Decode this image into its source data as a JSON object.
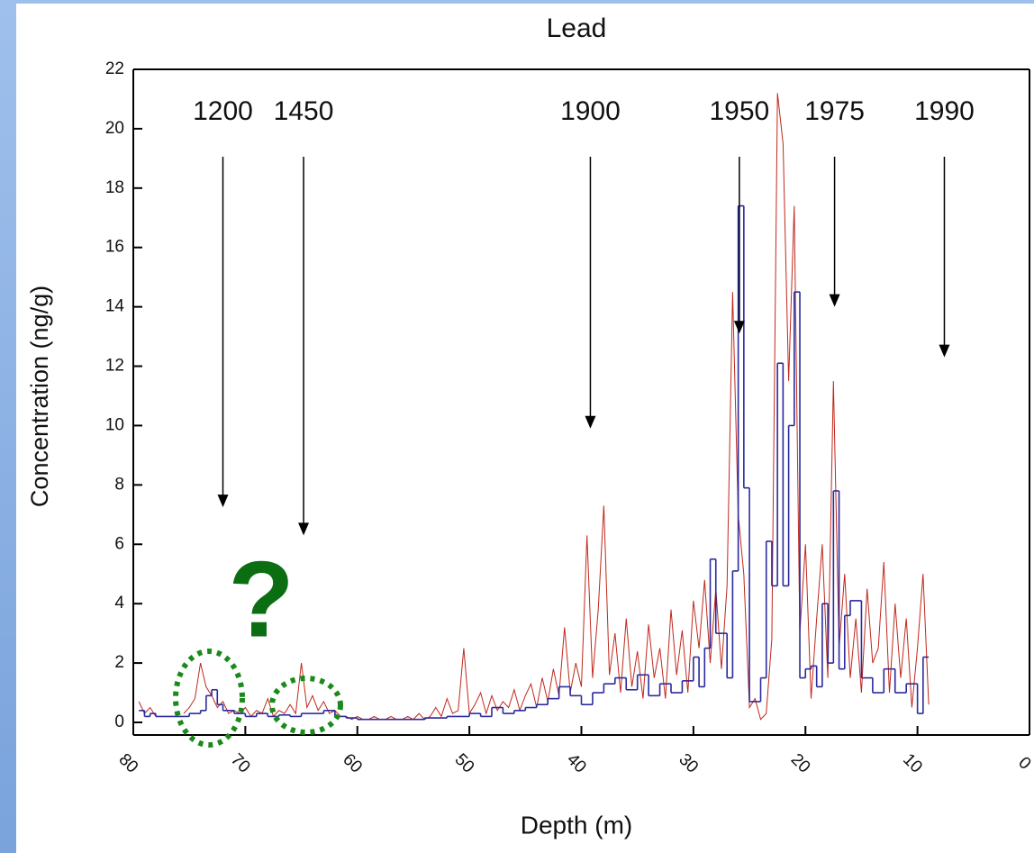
{
  "chart_data": {
    "type": "line",
    "title": "Lead",
    "x_label": "Depth (m)",
    "y_label": "Concentration (ng/g)",
    "xlim": [
      80,
      0
    ],
    "xticks": [
      80,
      70,
      60,
      50,
      40,
      30,
      20,
      10,
      0
    ],
    "ylim": [
      0,
      22
    ],
    "yticks": [
      0,
      2,
      4,
      6,
      8,
      10,
      12,
      14,
      16,
      18,
      20,
      22
    ],
    "series": [
      {
        "color": "#c0281c",
        "style": "line",
        "x": [
          79.5,
          79,
          78.5,
          78,
          77.5,
          77,
          76.5,
          76,
          75.5,
          75,
          74.5,
          74,
          73.5,
          73,
          72.5,
          72,
          71.5,
          71,
          70.5,
          70,
          69.5,
          69,
          68.5,
          68,
          67.5,
          67,
          66.5,
          66,
          65.5,
          65,
          64.5,
          64,
          63.5,
          63,
          62.5,
          62,
          61.5,
          61,
          60.5,
          60,
          59.5,
          59,
          58.5,
          58,
          57.5,
          57,
          56.5,
          56,
          55.5,
          55,
          54.5,
          54,
          53.5,
          53,
          52.5,
          52,
          51.5,
          51,
          50.5,
          50,
          49.5,
          49,
          48.5,
          48,
          47.5,
          47,
          46.5,
          46,
          45.5,
          45,
          44.5,
          44,
          43.5,
          43,
          42.5,
          42,
          41.5,
          41,
          40.5,
          40,
          39.5,
          39,
          38.5,
          38,
          37.5,
          37,
          36.5,
          36,
          35.5,
          35,
          34.5,
          34,
          33.5,
          33,
          32.5,
          32,
          31.5,
          31,
          30.5,
          30,
          29.5,
          29,
          28.5,
          28,
          27.5,
          27,
          26.5,
          26,
          25.5,
          25,
          24.5,
          24,
          23.5,
          23,
          22.5,
          22,
          21.5,
          21,
          20.5,
          20,
          19.5,
          19,
          18.5,
          18,
          17.5,
          17,
          16.5,
          16,
          15.5,
          15,
          14.5,
          14,
          13.5,
          13,
          12.5,
          12,
          11.5,
          11,
          10.5,
          10,
          9.5,
          9
        ],
        "values": [
          0.7,
          0.3,
          0.5,
          0.2,
          null,
          null,
          null,
          null,
          0.3,
          0.5,
          0.8,
          2.0,
          1.2,
          0.9,
          0.5,
          0.7,
          0.3,
          0.4,
          0.3,
          0.5,
          0.2,
          0.4,
          0.3,
          0.8,
          0.2,
          0.4,
          0.3,
          0.6,
          0.3,
          2.0,
          0.5,
          0.9,
          0.4,
          0.7,
          0.3,
          0.4,
          0.2,
          0.2,
          0.1,
          0.2,
          0.1,
          0.1,
          0.2,
          0.1,
          0.1,
          0.2,
          0.1,
          0.1,
          0.2,
          0.1,
          0.3,
          0.1,
          0.2,
          0.5,
          0.2,
          0.8,
          0.3,
          0.4,
          2.5,
          0.3,
          0.6,
          1.0,
          0.3,
          0.9,
          0.4,
          0.7,
          0.5,
          1.1,
          0.4,
          0.9,
          1.3,
          0.5,
          1.5,
          0.7,
          1.8,
          0.9,
          3.2,
          1.0,
          2.0,
          1.2,
          6.3,
          1.5,
          3.8,
          7.3,
          1.6,
          3.0,
          1.0,
          3.5,
          1.2,
          2.4,
          0.8,
          3.3,
          1.5,
          2.5,
          0.8,
          3.8,
          1.6,
          3.1,
          1.0,
          4.1,
          2.5,
          4.8,
          2.0,
          4.5,
          1.8,
          4.6,
          14.5,
          7.0,
          5.0,
          0.5,
          0.8,
          0.1,
          0.3,
          2.8,
          21.2,
          19.5,
          11.5,
          17.4,
          3.0,
          6.0,
          0.8,
          3.5,
          6.0,
          1.5,
          11.5,
          2.5,
          5.0,
          1.5,
          3.5,
          1.0,
          4.5,
          2.0,
          2.5,
          5.4,
          1.0,
          4.0,
          1.5,
          3.5,
          0.5,
          2.5,
          5.0,
          0.6
        ]
      },
      {
        "color": "#2a2a9c",
        "style": "step",
        "x": [
          79.5,
          79,
          78.5,
          78,
          75.5,
          75,
          74,
          73.5,
          73,
          72.5,
          72,
          71,
          70,
          69,
          68,
          67,
          66,
          65,
          64,
          63,
          62,
          61,
          60,
          58,
          56,
          54,
          52,
          50,
          49,
          48,
          47,
          46,
          45,
          44,
          43,
          42,
          41,
          40,
          39,
          38,
          37,
          36,
          35,
          34,
          33,
          32,
          31,
          30,
          29.5,
          29,
          28.5,
          28,
          27,
          26.5,
          26,
          25.5,
          25,
          24,
          23.5,
          23,
          22.5,
          22,
          21.5,
          21,
          20.5,
          20,
          19.5,
          19,
          18.5,
          18,
          17.5,
          17,
          16.5,
          16,
          15,
          14,
          13,
          12,
          11,
          10,
          9.5,
          9
        ],
        "values": [
          0.4,
          0.2,
          0.3,
          0.2,
          0.2,
          0.3,
          0.4,
          0.9,
          1.1,
          0.6,
          0.4,
          0.3,
          0.2,
          0.3,
          0.2,
          0.25,
          0.2,
          0.3,
          0.3,
          0.4,
          0.2,
          0.15,
          0.1,
          0.1,
          0.1,
          0.15,
          0.2,
          0.3,
          0.2,
          0.5,
          0.3,
          0.4,
          0.5,
          0.6,
          0.8,
          1.2,
          0.9,
          0.6,
          1.0,
          1.3,
          1.5,
          1.1,
          1.6,
          0.9,
          1.3,
          1.0,
          1.4,
          2.2,
          1.2,
          2.5,
          5.5,
          3.0,
          1.5,
          5.1,
          17.4,
          7.9,
          0.7,
          1.5,
          6.1,
          4.6,
          12.1,
          4.6,
          10.0,
          14.5,
          1.5,
          1.8,
          1.9,
          1.2,
          4.0,
          2.0,
          7.8,
          1.8,
          3.6,
          4.1,
          1.5,
          1.0,
          1.8,
          1.0,
          1.3,
          0.3,
          2.2,
          2.2
        ]
      }
    ],
    "annotations": [
      {
        "label": "1200",
        "x": 72.0,
        "y": 7.25
      },
      {
        "label": "1450",
        "x": 64.8,
        "y": 6.3
      },
      {
        "label": "1900",
        "x": 39.2,
        "y": 9.9
      },
      {
        "label": "1950",
        "x": 25.9,
        "y": 13.1
      },
      {
        "label": "1975",
        "x": 17.4,
        "y": 14.0
      },
      {
        "label": "1990",
        "x": 7.6,
        "y": 12.3
      }
    ],
    "question_mark": "?"
  }
}
